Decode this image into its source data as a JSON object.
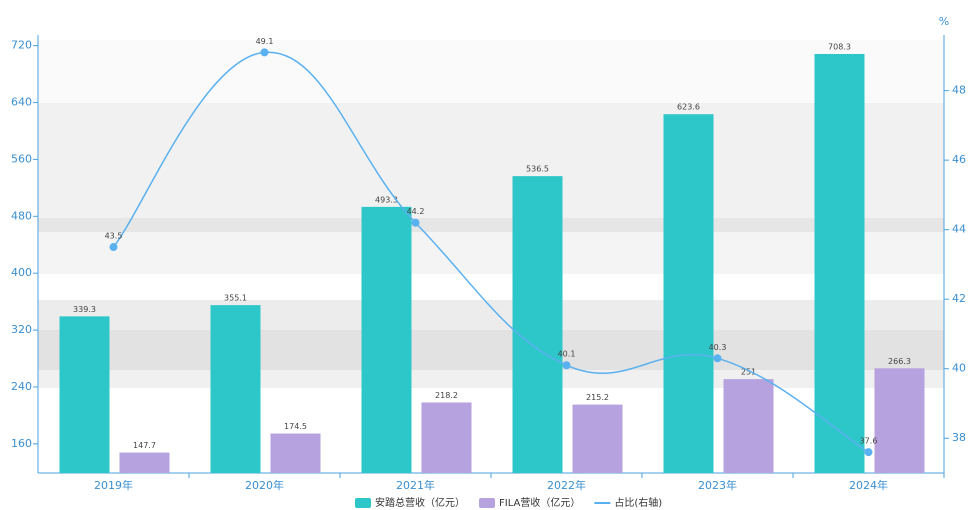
{
  "chart_data": {
    "type": "bar",
    "categories": [
      "2019年",
      "2020年",
      "2021年",
      "2022年",
      "2023年",
      "2024年"
    ],
    "series": [
      {
        "name": "安踏总营收（亿元）",
        "color": "#2ec7c9",
        "values": [
          339.3,
          355.1,
          493.3,
          536.5,
          623.6,
          708.3
        ]
      },
      {
        "name": "FILA营收（亿元）",
        "color": "#b6a2de",
        "values": [
          147.7,
          174.5,
          218.2,
          215.2,
          251,
          266.3
        ]
      },
      {
        "name": "占比(右轴)",
        "color": "#5ab1ef",
        "type": "line",
        "axis": "y2",
        "smooth": true,
        "values": [
          43.5,
          49.1,
          44.2,
          40.1,
          40.3,
          37.6
        ]
      }
    ],
    "ylim": [
      119,
      735
    ],
    "yticks": [
      160,
      240,
      320,
      400,
      480,
      560,
      640,
      720
    ],
    "y2label": "%",
    "y2lim": [
      37,
      49.6
    ],
    "y2ticks": [
      38,
      40,
      42,
      44,
      46,
      48
    ],
    "legend": "bottom"
  }
}
